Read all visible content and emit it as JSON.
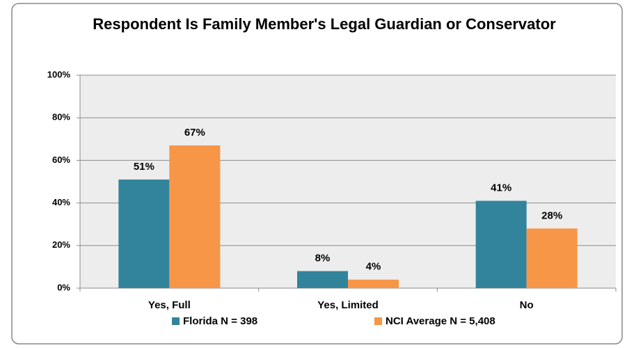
{
  "chart_data": {
    "type": "bar",
    "title": "Respondent Is Family Member's Legal Guardian or Conservator",
    "categories": [
      "Yes, Full",
      "Yes, Limited",
      "No"
    ],
    "series": [
      {
        "name": "Florida N = 398",
        "color": "#31849b",
        "values": [
          51,
          8,
          41
        ],
        "value_labels": [
          "51%",
          "8%",
          "41%"
        ]
      },
      {
        "name": "NCI Average N = 5,408",
        "color": "#f79646",
        "values": [
          67,
          4,
          28
        ],
        "value_labels": [
          "67%",
          "4%",
          "28%"
        ]
      }
    ],
    "ylim": [
      0,
      100
    ],
    "yticks": [
      {
        "value": 0,
        "label": "0%"
      },
      {
        "value": 20,
        "label": "20%"
      },
      {
        "value": 40,
        "label": "40%"
      },
      {
        "value": 60,
        "label": "60%"
      },
      {
        "value": 80,
        "label": "80%"
      },
      {
        "value": 100,
        "label": "100%"
      }
    ],
    "grid": true,
    "legend": "bottom"
  }
}
